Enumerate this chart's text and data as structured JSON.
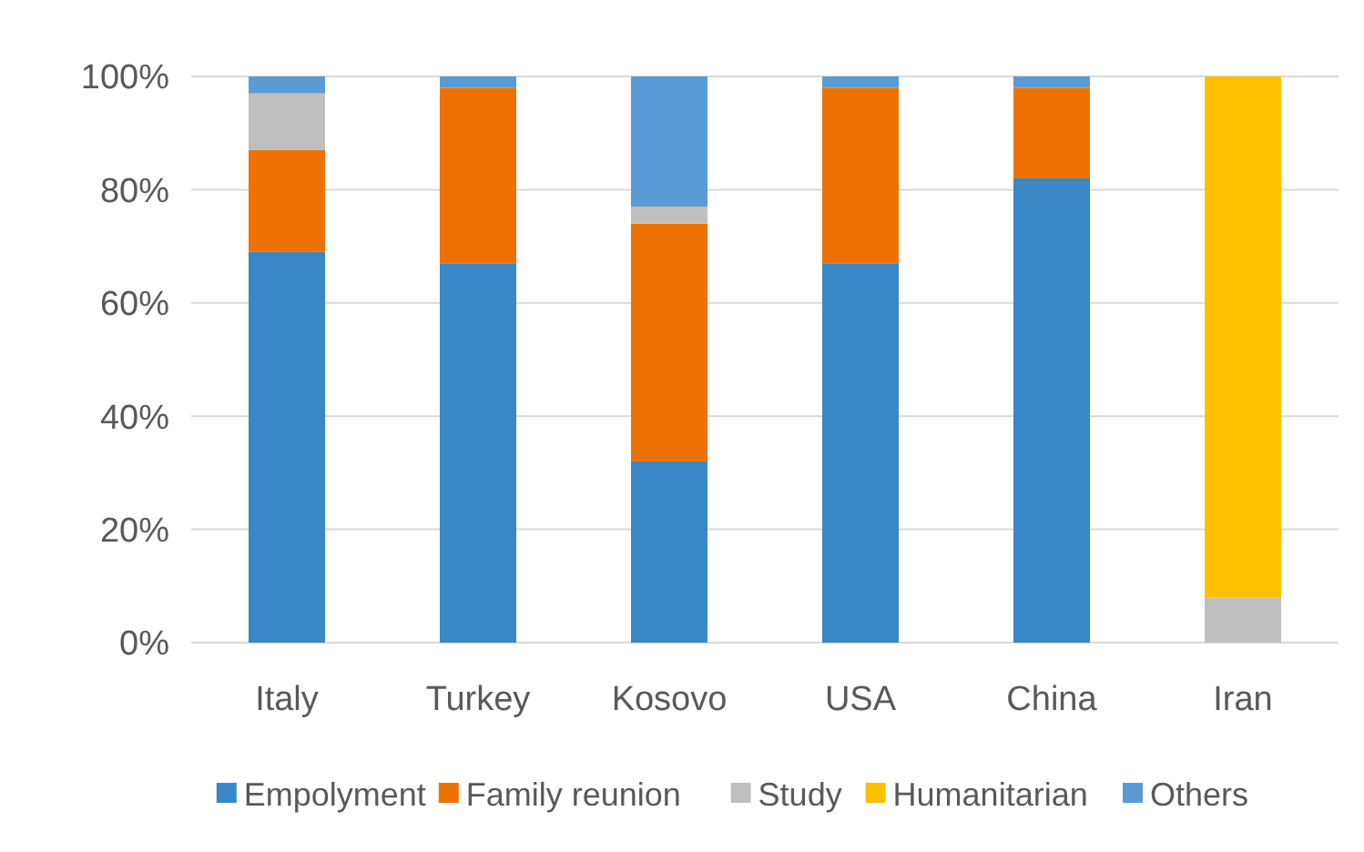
{
  "chart_data": {
    "type": "bar",
    "stacked": true,
    "categories": [
      "Italy",
      "Turkey",
      "Kosovo",
      "USA",
      "China",
      "Iran"
    ],
    "series": [
      {
        "name": "Empolyment",
        "color": "#3a87c8",
        "values": [
          69,
          67,
          32,
          67,
          82,
          0
        ]
      },
      {
        "name": "Family reunion",
        "color": "#ee7203",
        "values": [
          18,
          31,
          42,
          31,
          16,
          0
        ]
      },
      {
        "name": "Study",
        "color": "#bfbfbf",
        "values": [
          10,
          0,
          3,
          0,
          0,
          8
        ]
      },
      {
        "name": "Humanitarian",
        "color": "#ffc000",
        "values": [
          0,
          0,
          0,
          0,
          0,
          92
        ]
      },
      {
        "name": "Others",
        "color": "#5b9bd5",
        "values": [
          3,
          2,
          23,
          2,
          2,
          0
        ]
      }
    ],
    "ylim": [
      0,
      100
    ],
    "yticks": [
      {
        "value": 0,
        "label": "0%"
      },
      {
        "value": 20,
        "label": "20%"
      },
      {
        "value": 40,
        "label": "40%"
      },
      {
        "value": 60,
        "label": "60%"
      },
      {
        "value": 80,
        "label": "80%"
      },
      {
        "value": 100,
        "label": "100%"
      }
    ],
    "grid": "y",
    "legend": "bottom"
  }
}
